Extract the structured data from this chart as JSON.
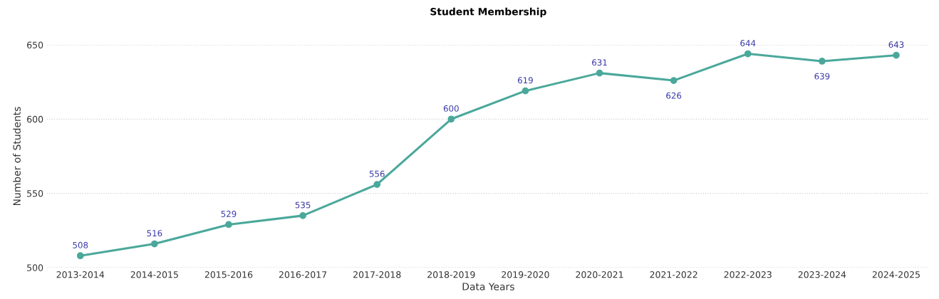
{
  "chart_data": {
    "type": "line",
    "title": "Student Membership",
    "xlabel": "Data Years",
    "ylabel": "Number of Students",
    "categories": [
      "2013-2014",
      "2014-2015",
      "2015-2016",
      "2016-2017",
      "2017-2018",
      "2018-2019",
      "2019-2020",
      "2020-2021",
      "2021-2022",
      "2022-2023",
      "2023-2024",
      "2024-2025"
    ],
    "series": [
      {
        "color": "#4aa89b",
        "values": [
          508,
          516,
          529,
          535,
          556,
          600,
          619,
          631,
          626,
          644,
          639,
          643
        ]
      }
    ],
    "ylim": [
      500,
      650
    ],
    "yticks": [
      500,
      550,
      600,
      650
    ],
    "grid": "y",
    "marker": "circle",
    "line_style": "solid",
    "data_labels": true
  }
}
